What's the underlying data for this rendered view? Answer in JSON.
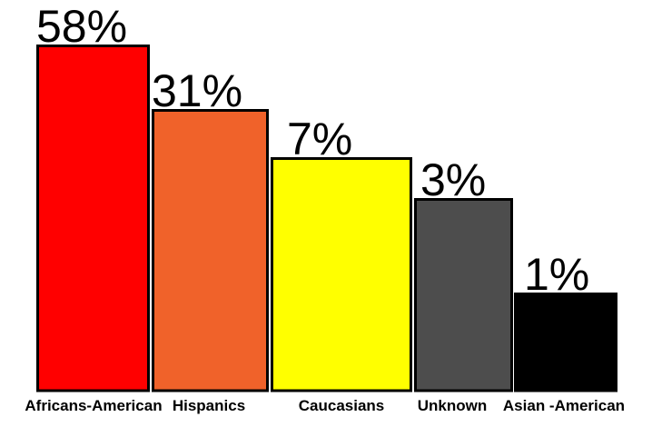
{
  "chart_data": {
    "type": "bar",
    "categories": [
      "Africans-American",
      "Hispanics",
      "Caucasians",
      "Unknown",
      "Asian -American"
    ],
    "values": [
      58,
      31,
      7,
      3,
      1
    ],
    "data_labels": [
      "58%",
      "31%",
      "7%",
      "3%",
      "1%"
    ],
    "colors": [
      "#ff0000",
      "#f0622a",
      "#ffff00",
      "#4d4d4d",
      "#000000"
    ],
    "title": "",
    "xlabel": "",
    "ylabel": "",
    "grid": false,
    "legend": "none"
  }
}
